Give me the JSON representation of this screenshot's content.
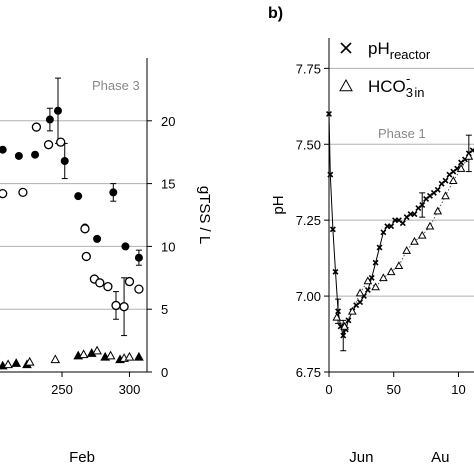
{
  "chart_data": [
    {
      "type": "scatter",
      "panel_label": "",
      "title": "",
      "annotation": "Phase 3",
      "xlabel": "Feb",
      "ylabel": "",
      "y2label": "gTSS / L",
      "x_ticks": [
        "250",
        "300"
      ],
      "y2_ticks": [
        "0",
        "5",
        "10",
        "15",
        "20"
      ],
      "xlim": [
        204,
        313
      ],
      "y2lim": [
        0,
        25
      ],
      "grid": "horizontal",
      "series": [
        {
          "name": "",
          "marker": "filled-circle",
          "points": [
            {
              "x": 206,
              "y": 17.7
            },
            {
              "x": 218,
              "y": 17.2
            },
            {
              "x": 230,
              "y": 17.3
            },
            {
              "x": 241,
              "y": 20.1
            },
            {
              "x": 247,
              "y": 20.8
            },
            {
              "x": 252,
              "y": 16.8
            },
            {
              "x": 262,
              "y": 14.0
            },
            {
              "x": 267,
              "y": 11.5
            },
            {
              "x": 276,
              "y": 10.6
            },
            {
              "x": 288,
              "y": 14.3
            },
            {
              "x": 297,
              "y": 10.0
            },
            {
              "x": 307,
              "y": 9.1
            }
          ],
          "errors": [
            null,
            null,
            null,
            0.9,
            2.6,
            1.4,
            null,
            null,
            null,
            0.7,
            null,
            0.6
          ]
        },
        {
          "name": "",
          "marker": "open-circle",
          "points": [
            {
              "x": 206,
              "y": 14.2
            },
            {
              "x": 221,
              "y": 14.3
            },
            {
              "x": 231,
              "y": 19.5
            },
            {
              "x": 240,
              "y": 18.1
            },
            {
              "x": 249,
              "y": 18.3
            },
            {
              "x": 267,
              "y": 11.4
            },
            {
              "x": 268,
              "y": 9.2
            },
            {
              "x": 274,
              "y": 7.4
            },
            {
              "x": 278,
              "y": 7.1
            },
            {
              "x": 284,
              "y": 6.8
            },
            {
              "x": 290,
              "y": 5.3
            },
            {
              "x": 296,
              "y": 5.2
            },
            {
              "x": 300,
              "y": 7.2
            },
            {
              "x": 307,
              "y": 6.6
            }
          ],
          "errors": [
            null,
            null,
            null,
            null,
            null,
            null,
            null,
            null,
            null,
            null,
            1.1,
            2.3,
            null,
            null
          ]
        },
        {
          "name": "",
          "marker": "filled-triangle",
          "points": [
            {
              "x": 206,
              "y": 0.5
            },
            {
              "x": 216,
              "y": 0.7
            },
            {
              "x": 224,
              "y": 0.6
            },
            {
              "x": 262,
              "y": 1.3
            },
            {
              "x": 272,
              "y": 1.5
            },
            {
              "x": 282,
              "y": 1.2
            },
            {
              "x": 293,
              "y": 1.0
            },
            {
              "x": 307,
              "y": 1.2
            }
          ]
        },
        {
          "name": "",
          "marker": "open-triangle",
          "points": [
            {
              "x": 210,
              "y": 0.6
            },
            {
              "x": 226,
              "y": 0.8
            },
            {
              "x": 245,
              "y": 1.0
            },
            {
              "x": 266,
              "y": 1.4
            },
            {
              "x": 276,
              "y": 1.7
            },
            {
              "x": 286,
              "y": 1.3
            },
            {
              "x": 296,
              "y": 1.1
            },
            {
              "x": 300,
              "y": 1.2
            }
          ]
        }
      ]
    },
    {
      "type": "line",
      "panel_label": "b)",
      "title": "",
      "annotation": "Phase 1",
      "xlabel": "",
      "ylabel": "pH",
      "month_labels": [
        "Jun",
        "Au"
      ],
      "x_ticks": [
        "0",
        "50",
        "10"
      ],
      "y_ticks": [
        "6.75",
        "7.00",
        "7.25",
        "7.50",
        "7.75"
      ],
      "xlim": [
        0,
        112
      ],
      "ylim": [
        6.75,
        7.85
      ],
      "grid": "horizontal",
      "legend": {
        "placement": "top-right",
        "entries": [
          {
            "marker": "cross",
            "main": "pH",
            "sub": "reactor",
            "sup": ""
          },
          {
            "marker": "open-triangle",
            "main": "HCO",
            "sub": "3",
            "sup": "-",
            "sub2": "in"
          }
        ]
      },
      "series": [
        {
          "name": "pH reactor",
          "marker": "cross",
          "line": "solid",
          "x": [
            0,
            1,
            3,
            5,
            7,
            9,
            11,
            13,
            15,
            18,
            21,
            24,
            27,
            30,
            33,
            36,
            39,
            42,
            45,
            48,
            51,
            54,
            57,
            60,
            63,
            66,
            69,
            72,
            75,
            78,
            81,
            84,
            87,
            90,
            93,
            96,
            99,
            102,
            105,
            108,
            111
          ],
          "y": [
            7.6,
            7.4,
            7.22,
            7.08,
            6.95,
            6.9,
            6.87,
            6.89,
            6.92,
            6.95,
            6.97,
            6.98,
            7.0,
            7.02,
            7.06,
            7.11,
            7.16,
            7.21,
            7.23,
            7.23,
            7.25,
            7.25,
            7.24,
            7.26,
            7.27,
            7.27,
            7.29,
            7.3,
            7.32,
            7.33,
            7.34,
            7.35,
            7.37,
            7.38,
            7.4,
            7.41,
            7.42,
            7.44,
            7.45,
            7.47,
            7.48
          ],
          "errors": [
            null,
            null,
            null,
            null,
            0.04,
            null,
            0.05,
            null,
            null,
            null,
            null,
            null,
            null,
            null,
            null,
            null,
            null,
            null,
            null,
            null,
            null,
            null,
            null,
            null,
            null,
            null,
            null,
            0.04,
            null,
            null,
            null,
            null,
            null,
            null,
            null,
            null,
            null,
            null,
            null,
            0.06,
            null
          ]
        },
        {
          "name": "HCO3- in",
          "marker": "open-triangle",
          "line": "dotted",
          "x": [
            6,
            12,
            18,
            24,
            30,
            36,
            42,
            48,
            54,
            60,
            66,
            72,
            78,
            84,
            90,
            96,
            102,
            108
          ],
          "y": [
            6.93,
            6.9,
            6.95,
            7.01,
            7.05,
            7.03,
            7.06,
            7.08,
            7.1,
            7.15,
            7.18,
            7.2,
            7.23,
            7.28,
            7.33,
            7.38,
            7.42,
            7.46
          ]
        }
      ]
    }
  ]
}
